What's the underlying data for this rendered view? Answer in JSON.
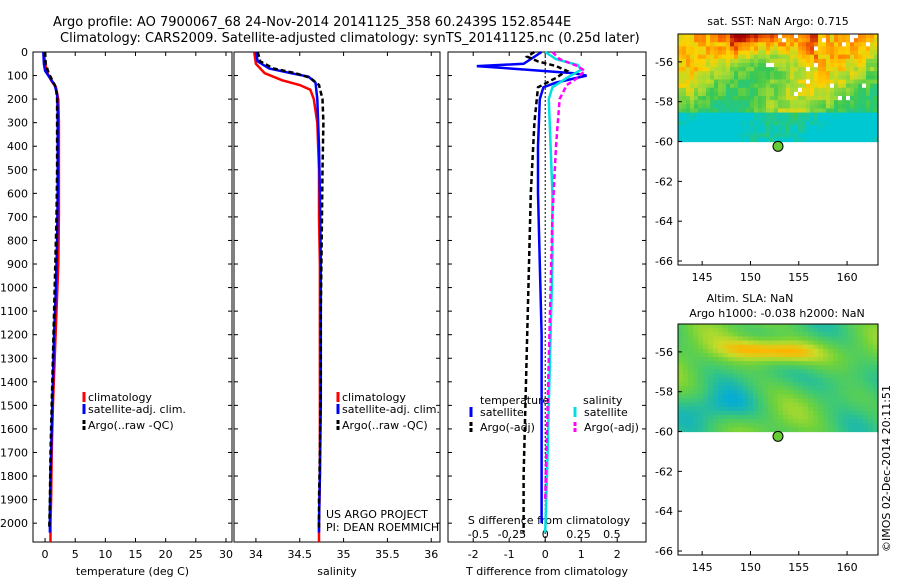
{
  "header": {
    "line1": "Argo profile: AO 7900067_68 24-Nov-2014 20141125_358 60.2439S 152.8544E",
    "line2": "Climatology: CARS2009. Satellite-adjusted climatology: synTS_20141125.nc (0.25d later)"
  },
  "colors": {
    "climatology": "#ff0000",
    "satellite": "#0000ff",
    "argo": "#000000",
    "sal_satellite": "#00e0e0",
    "sal_argo": "#ff00ff",
    "marker": "#66cc33"
  },
  "credit": {
    "line1": "US ARGO PROJECT",
    "line2": "PI: DEAN ROEMMICH"
  },
  "watermark": "©IMOS 02-Dec-2014 20:11:51",
  "chart_data": [
    {
      "type": "line",
      "name": "temperature-profile",
      "xlabel": "temperature (deg C)",
      "xlim": [
        -2,
        31
      ],
      "ylim": [
        0,
        2080
      ],
      "y_reversed": true,
      "xticks": [
        0,
        5,
        10,
        15,
        20,
        25,
        30
      ],
      "yticks": [
        0,
        100,
        200,
        300,
        400,
        500,
        600,
        700,
        800,
        900,
        1000,
        1100,
        1200,
        1300,
        1400,
        1500,
        1600,
        1700,
        1800,
        1900,
        2000
      ],
      "legend": [
        "climatology",
        "satellite-adj. clim.",
        "Argo(..raw -QC)"
      ],
      "series": [
        {
          "name": "climatology",
          "color": "#ff0000",
          "dash": "",
          "points": [
            [
              -0.2,
              0
            ],
            [
              0,
              50
            ],
            [
              0.4,
              90
            ],
            [
              1.0,
              120
            ],
            [
              1.8,
              150
            ],
            [
              2.2,
              200
            ],
            [
              2.3,
              300
            ],
            [
              2.3,
              400
            ],
            [
              2.3,
              500
            ],
            [
              2.3,
              700
            ],
            [
              2.2,
              900
            ],
            [
              1.9,
              1100
            ],
            [
              1.6,
              1300
            ],
            [
              1.3,
              1500
            ],
            [
              1.1,
              1700
            ],
            [
              1.0,
              1900
            ],
            [
              0.9,
              2000
            ],
            [
              0.9,
              2080
            ]
          ]
        },
        {
          "name": "satellite-adj. clim.",
          "color": "#0000ff",
          "dash": "",
          "points": [
            [
              -0.3,
              0
            ],
            [
              -0.2,
              50
            ],
            [
              0,
              80
            ],
            [
              0.8,
              110
            ],
            [
              1.6,
              140
            ],
            [
              2.0,
              180
            ],
            [
              2.1,
              250
            ],
            [
              2.1,
              400
            ],
            [
              2.1,
              600
            ],
            [
              2.0,
              800
            ],
            [
              1.8,
              1000
            ],
            [
              1.5,
              1200
            ],
            [
              1.3,
              1400
            ],
            [
              1.1,
              1600
            ],
            [
              0.9,
              1800
            ],
            [
              0.8,
              1950
            ],
            [
              0.8,
              2040
            ]
          ]
        },
        {
          "name": "Argo(..raw -QC)",
          "color": "#000000",
          "dash": "5,3",
          "points": [
            [
              0.0,
              0
            ],
            [
              0.1,
              50
            ],
            [
              0.6,
              90
            ],
            [
              1.2,
              120
            ],
            [
              1.8,
              150
            ],
            [
              2.0,
              200
            ],
            [
              2.0,
              300
            ],
            [
              2.0,
              500
            ],
            [
              1.9,
              700
            ],
            [
              1.7,
              900
            ],
            [
              1.5,
              1100
            ],
            [
              1.3,
              1300
            ],
            [
              1.1,
              1500
            ],
            [
              0.9,
              1700
            ],
            [
              0.8,
              1900
            ],
            [
              0.7,
              2020
            ]
          ]
        }
      ]
    },
    {
      "type": "line",
      "name": "salinity-profile",
      "xlabel": "salinity",
      "xlim": [
        33.75,
        36.1
      ],
      "ylim": [
        0,
        2080
      ],
      "y_reversed": true,
      "xticks": [
        34,
        34.5,
        35,
        35.5,
        36
      ],
      "legend": [
        "climatology",
        "satellite-adj. clim.",
        "Argo(..raw -QC)"
      ],
      "series": [
        {
          "name": "climatology",
          "color": "#ff0000",
          "dash": "",
          "points": [
            [
              33.98,
              0
            ],
            [
              34.0,
              50
            ],
            [
              34.1,
              90
            ],
            [
              34.3,
              120
            ],
            [
              34.5,
              140
            ],
            [
              34.62,
              160
            ],
            [
              34.66,
              200
            ],
            [
              34.7,
              300
            ],
            [
              34.72,
              500
            ],
            [
              34.72,
              700
            ],
            [
              34.73,
              900
            ],
            [
              34.73,
              1200
            ],
            [
              34.73,
              1500
            ],
            [
              34.73,
              1800
            ],
            [
              34.72,
              2000
            ],
            [
              34.72,
              2080
            ]
          ]
        },
        {
          "name": "satellite-adj. clim.",
          "color": "#0000ff",
          "dash": "",
          "points": [
            [
              34.0,
              0
            ],
            [
              34.02,
              40
            ],
            [
              34.15,
              70
            ],
            [
              34.4,
              90
            ],
            [
              34.6,
              105
            ],
            [
              34.68,
              130
            ],
            [
              34.7,
              200
            ],
            [
              34.72,
              400
            ],
            [
              34.73,
              600
            ],
            [
              34.74,
              900
            ],
            [
              34.74,
              1200
            ],
            [
              34.74,
              1500
            ],
            [
              34.73,
              1800
            ],
            [
              34.72,
              2000
            ],
            [
              34.72,
              2040
            ]
          ]
        },
        {
          "name": "Argo(..raw -QC)",
          "color": "#000000",
          "dash": "5,3",
          "points": [
            [
              34.02,
              0
            ],
            [
              34.05,
              40
            ],
            [
              34.2,
              70
            ],
            [
              34.45,
              90
            ],
            [
              34.62,
              110
            ],
            [
              34.72,
              140
            ],
            [
              34.76,
              200
            ],
            [
              34.77,
              300
            ],
            [
              34.76,
              500
            ],
            [
              34.75,
              800
            ],
            [
              34.74,
              1100
            ],
            [
              34.74,
              1400
            ],
            [
              34.73,
              1700
            ],
            [
              34.72,
              1900
            ],
            [
              34.72,
              2020
            ]
          ]
        }
      ]
    },
    {
      "type": "line",
      "name": "difference-profile",
      "xlabel": "T difference from climatology",
      "x2label": "S difference from climatology",
      "xlim": [
        -2.7,
        2.8
      ],
      "ylim": [
        0,
        2080
      ],
      "y_reversed": true,
      "xticks": [
        -2,
        -1,
        0,
        1,
        2
      ],
      "x2ticks": [
        {
          "v": -0.5,
          "label": "-0.5"
        },
        {
          "v": -0.25,
          "label": "-0.25"
        },
        {
          "v": 0,
          "label": "0"
        },
        {
          "v": 0.25,
          "label": "0.25"
        },
        {
          "v": 0.5,
          "label": "0.5"
        }
      ],
      "x2range": [
        -0.68,
        0.68
      ],
      "legend_temperature_title": "temperature",
      "legend_salinity_title": "salinity",
      "legend": [
        "satellite",
        "Argo(-adj)",
        "satellite",
        "Argo(-adj)"
      ],
      "series": [
        {
          "name": "temperature satellite",
          "color": "#0000ff",
          "dash": "",
          "points": [
            [
              -0.1,
              0
            ],
            [
              -0.6,
              50
            ],
            [
              -1.9,
              60
            ],
            [
              -0.5,
              75
            ],
            [
              0.8,
              90
            ],
            [
              1.15,
              100
            ],
            [
              0.3,
              130
            ],
            [
              -0.05,
              150
            ],
            [
              -0.15,
              200
            ],
            [
              -0.2,
              400
            ],
            [
              -0.2,
              600
            ],
            [
              -0.15,
              900
            ],
            [
              -0.1,
              1200
            ],
            [
              -0.1,
              1500
            ],
            [
              -0.1,
              1800
            ],
            [
              -0.1,
              2000
            ]
          ]
        },
        {
          "name": "temperature Argo(-adj)",
          "color": "#000000",
          "dash": "5,3",
          "points": [
            [
              -0.3,
              0
            ],
            [
              -0.5,
              20
            ],
            [
              -0.2,
              40
            ],
            [
              0.3,
              60
            ],
            [
              0.6,
              80
            ],
            [
              0.3,
              110
            ],
            [
              -0.2,
              150
            ],
            [
              -0.3,
              300
            ],
            [
              -0.4,
              600
            ],
            [
              -0.45,
              900
            ],
            [
              -0.5,
              1200
            ],
            [
              -0.55,
              1500
            ],
            [
              -0.6,
              1800
            ],
            [
              -0.6,
              2040
            ]
          ]
        },
        {
          "name": "salinity satellite",
          "color": "#00e0e0",
          "dash": "",
          "points": [
            [
              0.0,
              0
            ],
            [
              0.3,
              30
            ],
            [
              0.9,
              55
            ],
            [
              1.0,
              75
            ],
            [
              0.6,
              110
            ],
            [
              0.2,
              150
            ],
            [
              0.1,
              200
            ],
            [
              0.15,
              400
            ],
            [
              0.2,
              600
            ],
            [
              0.2,
              900
            ],
            [
              0.15,
              1200
            ],
            [
              0.1,
              1500
            ],
            [
              0.05,
              1800
            ],
            [
              0.0,
              2040
            ]
          ]
        },
        {
          "name": "salinity Argo(-adj)",
          "color": "#ff00ff",
          "dash": "5,3",
          "points": [
            [
              0.2,
              0
            ],
            [
              0.4,
              30
            ],
            [
              0.9,
              60
            ],
            [
              1.1,
              80
            ],
            [
              0.9,
              110
            ],
            [
              0.6,
              140
            ],
            [
              0.4,
              200
            ],
            [
              0.3,
              400
            ],
            [
              0.2,
              700
            ],
            [
              0.15,
              1000
            ],
            [
              0.1,
              1300
            ],
            [
              0.05,
              1600
            ],
            [
              0.0,
              1900
            ]
          ]
        }
      ]
    },
    {
      "type": "heatmap",
      "name": "sst-map",
      "title": "sat. SST: NaN Argo: 0.715",
      "xlim": [
        142.5,
        163.2
      ],
      "ylim": [
        -66.2,
        -54.6
      ],
      "xticks": [
        145,
        150,
        155,
        160
      ],
      "yticks": [
        -56,
        -58,
        -60,
        -62,
        -64,
        -66
      ],
      "data_bottom_lat": -60,
      "marker": [
        152.85,
        -60.24
      ]
    },
    {
      "type": "heatmap",
      "name": "sla-map",
      "title1": "Altim. SLA: NaN",
      "title2": "Argo h1000: -0.038 h2000: NaN",
      "xlim": [
        142.5,
        163.2
      ],
      "ylim": [
        -66.2,
        -54.6
      ],
      "xticks": [
        145,
        150,
        155,
        160
      ],
      "yticks": [
        -56,
        -58,
        -60,
        -62,
        -64,
        -66
      ],
      "data_bottom_lat": -60,
      "marker": [
        152.85,
        -60.24
      ]
    }
  ]
}
